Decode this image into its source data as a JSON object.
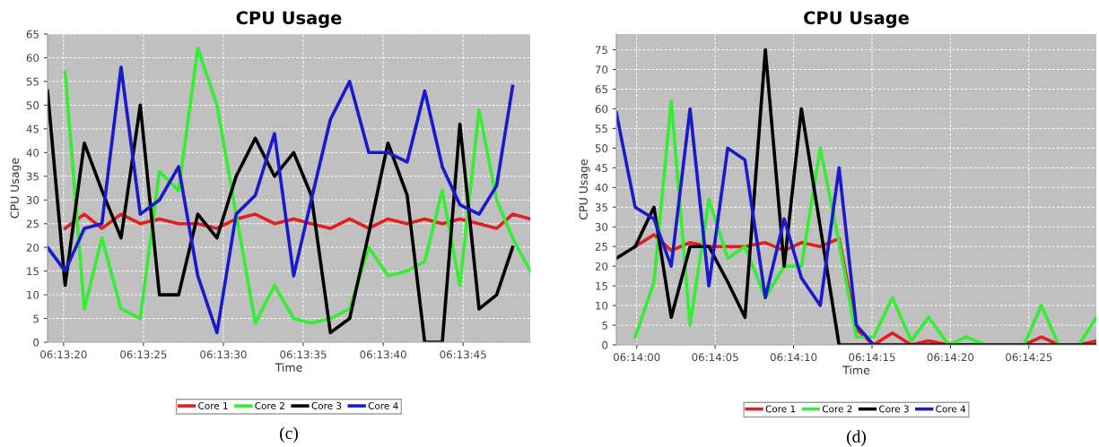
{
  "chart_data": [
    {
      "type": "line",
      "title": "CPU Usage",
      "xlabel": "Time",
      "ylabel": "CPU Usage",
      "annotations": [
        "(c)"
      ],
      "x": [
        22399.0,
        22400.1,
        22401.3,
        22402.4,
        22403.6,
        22404.8,
        22406.0,
        22407.2,
        22408.4,
        22409.6,
        22410.8,
        22412.0,
        22413.2,
        22414.4,
        22415.5,
        22416.7,
        22417.9,
        22419.1,
        22420.3,
        22421.5,
        22422.6,
        22423.7,
        22424.8,
        22426.0,
        22427.1,
        22428.1,
        22429.2
      ],
      "series": [
        {
          "name": "Core 1",
          "color": "#e02020",
          "values": [
            null,
            24,
            27,
            24,
            27,
            25,
            26,
            25,
            25,
            24,
            26,
            27,
            25,
            26,
            25,
            24,
            26,
            24,
            26,
            25,
            26,
            25,
            26,
            25,
            24,
            27,
            26
          ]
        },
        {
          "name": "Core 2",
          "color": "#33ee33",
          "values": [
            null,
            57,
            7,
            22,
            7,
            5,
            36,
            32,
            62,
            50,
            27,
            4,
            12,
            5,
            4,
            5,
            7,
            20,
            14,
            15,
            17,
            32,
            12,
            49,
            30,
            22,
            15
          ]
        },
        {
          "name": "Core 3",
          "color": "#000000",
          "values": [
            53,
            12,
            42,
            32,
            22,
            50,
            10,
            10,
            27,
            22,
            35,
            43,
            35,
            40,
            31,
            2,
            5,
            23,
            42,
            31,
            0,
            0,
            46,
            7,
            10,
            20,
            null
          ]
        },
        {
          "name": "Core 4",
          "color": "#1a1acc",
          "values": [
            20,
            15,
            24,
            25,
            58,
            27,
            30,
            37,
            14,
            2,
            27,
            31,
            44,
            14,
            30,
            47,
            55,
            40,
            40,
            38,
            53,
            37,
            29,
            27,
            33,
            54,
            null
          ]
        }
      ],
      "xlim": [
        22399.0,
        22429.2
      ],
      "ylim": [
        0,
        65
      ],
      "xticks": [
        {
          "value": 22400,
          "label": "06:13:20"
        },
        {
          "value": 22405,
          "label": "06:13:25"
        },
        {
          "value": 22410,
          "label": "06:13:30"
        },
        {
          "value": 22415,
          "label": "06:13:35"
        },
        {
          "value": 22420,
          "label": "06:13:40"
        },
        {
          "value": 22425,
          "label": "06:13:45"
        }
      ],
      "yticks": [
        0,
        5,
        10,
        15,
        20,
        25,
        30,
        35,
        40,
        45,
        50,
        55,
        60,
        65
      ],
      "grid": true,
      "legend": "bottom",
      "marker": "none",
      "line_style": "solid"
    },
    {
      "type": "line",
      "title": "CPU Usage",
      "xlabel": "Time",
      "ylabel": "CPU Usage",
      "annotations": [
        "(d)"
      ],
      "x": [
        22438.7,
        22439.9,
        22441.1,
        22442.2,
        22443.4,
        22444.6,
        22445.8,
        22446.9,
        22448.2,
        22449.4,
        22450.5,
        22451.7,
        22452.9,
        22454.0,
        22455.1,
        22456.3,
        22457.5,
        22458.6,
        22459.9,
        22461.0,
        22462.2,
        22463.5,
        22464.7,
        22465.8,
        22466.9,
        22468.2,
        22469.3
      ],
      "series": [
        {
          "name": "Core 1",
          "color": "#e02020",
          "values": [
            null,
            25,
            28,
            24,
            26,
            25,
            25,
            25,
            26,
            24,
            26,
            25,
            27,
            4,
            0,
            3,
            0,
            1,
            0,
            0,
            0,
            0,
            0,
            2,
            0,
            0,
            1
          ]
        },
        {
          "name": "Core 2",
          "color": "#33ee33",
          "values": [
            null,
            2,
            16,
            62,
            5,
            37,
            22,
            25,
            12,
            20,
            20,
            50,
            26,
            2,
            2,
            12,
            1,
            7,
            0,
            2,
            0,
            0,
            0,
            10,
            0,
            0,
            7
          ]
        },
        {
          "name": "Core 3",
          "color": "#000000",
          "values": [
            22,
            25,
            35,
            7,
            25,
            25,
            16,
            7,
            75,
            20,
            60,
            30,
            0,
            0,
            0,
            0,
            0,
            0,
            0,
            0,
            0,
            0,
            0,
            0,
            0,
            0,
            0
          ]
        },
        {
          "name": "Core 4",
          "color": "#1a1acc",
          "values": [
            59,
            35,
            32,
            20,
            60,
            15,
            50,
            47,
            12,
            32,
            17,
            10,
            45,
            5,
            0,
            null,
            null,
            null,
            null,
            null,
            null,
            null,
            null,
            null,
            null,
            null,
            null
          ]
        }
      ],
      "xlim": [
        22438.7,
        22469.3
      ],
      "ylim": [
        0,
        79
      ],
      "xticks": [
        {
          "value": 22440,
          "label": "06:14:00"
        },
        {
          "value": 22445,
          "label": "06:14:05"
        },
        {
          "value": 22450,
          "label": "06:14:10"
        },
        {
          "value": 22455,
          "label": "06:14:15"
        },
        {
          "value": 22460,
          "label": "06:14:20"
        },
        {
          "value": 22465,
          "label": "06:14:25"
        }
      ],
      "yticks": [
        0,
        5,
        10,
        15,
        20,
        25,
        30,
        35,
        40,
        45,
        50,
        55,
        60,
        65,
        70,
        75
      ],
      "grid": true,
      "legend": "bottom",
      "marker": "none",
      "line_style": "solid"
    }
  ]
}
